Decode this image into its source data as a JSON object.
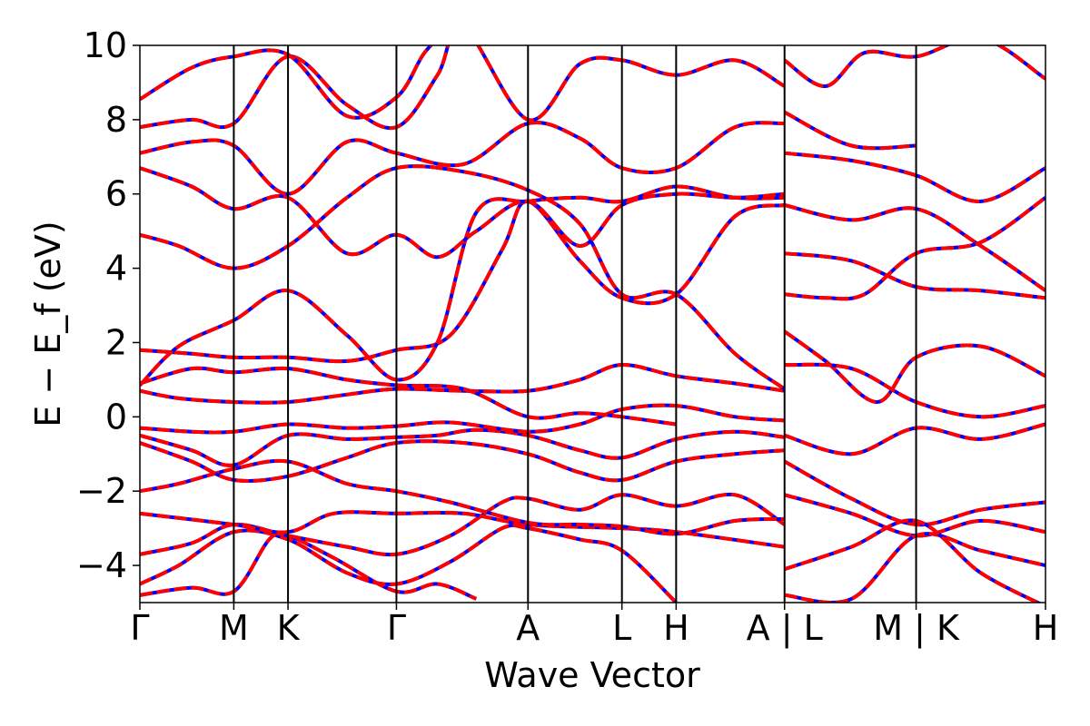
{
  "chart_data": {
    "type": "line",
    "title": "",
    "xlabel": "Wave Vector",
    "ylabel": "E − E_f (eV)",
    "ylim": [
      -5,
      10
    ],
    "yticks": [
      -4,
      -2,
      0,
      2,
      4,
      6,
      8,
      10
    ],
    "ytick_labels": [
      "−4",
      "−2",
      "0",
      "2",
      "4",
      "6",
      "8",
      "10"
    ],
    "kpoints": [
      {
        "label": "Γ",
        "x": 0.0
      },
      {
        "label": "M",
        "x": 0.726
      },
      {
        "label": "K",
        "x": 1.145
      },
      {
        "label": "Γ",
        "x": 1.983
      },
      {
        "label": "A",
        "x": 3.0
      },
      {
        "label": "L",
        "x": 3.726
      },
      {
        "label": "H",
        "x": 4.145
      },
      {
        "label": "A | L",
        "x": 4.983
      },
      {
        "label": "M | K",
        "x": 6.0
      },
      {
        "label": "H",
        "x": 7.0
      }
    ],
    "grid": false,
    "legend": "none",
    "series": [
      {
        "color": "#0000ff",
        "style": "solid"
      },
      {
        "color": "#ff0000",
        "style": "dashed"
      }
    ],
    "bands": [
      {
        "segments": [
          [
            0.0,
            -4.8
          ],
          [
            0.4,
            -4.6
          ],
          [
            0.726,
            -4.7
          ],
          [
            1.0,
            -3.3
          ],
          [
            1.145,
            -3.2
          ],
          [
            1.5,
            -3.8
          ],
          [
            1.983,
            -4.7
          ],
          [
            2.3,
            -4.5
          ],
          [
            2.6,
            -4.9
          ]
        ]
      },
      {
        "segments": [
          [
            0.0,
            -4.5
          ],
          [
            0.3,
            -4.0
          ],
          [
            0.726,
            -3.1
          ],
          [
            1.145,
            -3.3
          ],
          [
            1.6,
            -4.2
          ],
          [
            1.983,
            -4.5
          ],
          [
            2.4,
            -3.9
          ],
          [
            2.8,
            -3.0
          ],
          [
            3.0,
            -3.0
          ],
          [
            3.4,
            -3.3
          ],
          [
            3.726,
            -3.6
          ],
          [
            4.145,
            -5.0
          ]
        ]
      },
      {
        "segments": [
          [
            0.0,
            -3.7
          ],
          [
            0.4,
            -3.4
          ],
          [
            0.726,
            -2.9
          ],
          [
            1.145,
            -3.2
          ],
          [
            1.6,
            -3.5
          ],
          [
            1.983,
            -3.7
          ],
          [
            2.4,
            -3.2
          ],
          [
            2.8,
            -2.3
          ],
          [
            3.0,
            -2.2
          ],
          [
            3.4,
            -2.5
          ],
          [
            3.726,
            -2.1
          ],
          [
            4.145,
            -2.4
          ],
          [
            4.6,
            -2.1
          ],
          [
            4.983,
            -2.9
          ]
        ]
      },
      {
        "segments": [
          [
            0.0,
            -2.6
          ],
          [
            0.726,
            -2.9
          ],
          [
            1.145,
            -3.1
          ],
          [
            1.5,
            -2.6
          ],
          [
            1.983,
            -2.6
          ],
          [
            2.5,
            -2.6
          ],
          [
            3.0,
            -2.9
          ],
          [
            3.726,
            -3.0
          ],
          [
            4.145,
            -3.1
          ],
          [
            4.983,
            -3.5
          ]
        ]
      },
      {
        "segments": [
          [
            0.0,
            -2.0
          ],
          [
            0.3,
            -1.8
          ],
          [
            0.726,
            -1.4
          ],
          [
            1.145,
            -1.2
          ],
          [
            1.6,
            -1.8
          ],
          [
            1.983,
            -2.0
          ],
          [
            2.4,
            -2.3
          ],
          [
            3.0,
            -2.85
          ],
          [
            3.4,
            -2.9
          ],
          [
            3.726,
            -2.95
          ],
          [
            4.145,
            -3.15
          ],
          [
            4.6,
            -2.8
          ],
          [
            4.983,
            -2.75
          ]
        ]
      },
      {
        "segments": [
          [
            0.0,
            -0.7
          ],
          [
            0.4,
            -1.2
          ],
          [
            0.726,
            -1.7
          ],
          [
            1.145,
            -1.6
          ],
          [
            1.6,
            -1.1
          ],
          [
            1.983,
            -0.7
          ],
          [
            2.5,
            -0.7
          ],
          [
            3.0,
            -1.0
          ],
          [
            3.4,
            -1.5
          ],
          [
            3.726,
            -1.7
          ],
          [
            4.145,
            -1.2
          ],
          [
            4.6,
            -1.0
          ],
          [
            4.983,
            -0.9
          ]
        ]
      },
      {
        "segments": [
          [
            0.0,
            -0.5
          ],
          [
            0.4,
            -0.9
          ],
          [
            0.726,
            -1.3
          ],
          [
            1.145,
            -0.5
          ],
          [
            1.6,
            -0.6
          ],
          [
            1.983,
            -0.55
          ],
          [
            2.3,
            -0.5
          ],
          [
            2.6,
            -0.35
          ],
          [
            3.0,
            -0.5
          ],
          [
            3.4,
            -0.9
          ],
          [
            3.726,
            -1.1
          ],
          [
            4.145,
            -0.6
          ],
          [
            4.6,
            -0.4
          ],
          [
            4.983,
            -0.55
          ]
        ]
      },
      {
        "segments": [
          [
            0.0,
            -0.3
          ],
          [
            0.4,
            -0.4
          ],
          [
            0.726,
            -0.4
          ],
          [
            1.145,
            -0.2
          ],
          [
            1.6,
            -0.3
          ],
          [
            1.983,
            -0.25
          ],
          [
            2.4,
            -0.15
          ],
          [
            3.0,
            -0.4
          ],
          [
            3.4,
            -0.2
          ],
          [
            3.726,
            0.2
          ],
          [
            4.145,
            0.3
          ],
          [
            4.6,
            0.0
          ],
          [
            4.983,
            -0.1
          ]
        ]
      },
      {
        "segments": [
          [
            0.0,
            0.7
          ],
          [
            0.3,
            0.5
          ],
          [
            0.726,
            0.4
          ],
          [
            1.145,
            0.4
          ],
          [
            1.6,
            0.6
          ],
          [
            1.983,
            0.75
          ],
          [
            2.5,
            0.7
          ],
          [
            3.0,
            0.7
          ],
          [
            3.4,
            1.0
          ],
          [
            3.726,
            1.4
          ],
          [
            4.145,
            1.1
          ],
          [
            4.6,
            0.9
          ],
          [
            4.983,
            0.7
          ]
        ]
      },
      {
        "segments": [
          [
            0.0,
            0.9
          ],
          [
            0.4,
            1.3
          ],
          [
            0.726,
            1.2
          ],
          [
            1.145,
            1.3
          ],
          [
            1.6,
            1.0
          ],
          [
            1.983,
            0.85
          ],
          [
            2.5,
            0.75
          ],
          [
            3.0,
            0.0
          ],
          [
            3.4,
            0.1
          ],
          [
            3.726,
            0.0
          ],
          [
            4.145,
            -0.2
          ]
        ]
      },
      {
        "segments": [
          [
            0.0,
            1.8
          ],
          [
            0.4,
            1.7
          ],
          [
            0.726,
            1.6
          ],
          [
            1.145,
            1.6
          ],
          [
            1.6,
            1.5
          ],
          [
            1.983,
            1.8
          ],
          [
            2.4,
            2.2
          ],
          [
            2.8,
            4.5
          ],
          [
            3.0,
            5.8
          ],
          [
            3.4,
            4.2
          ],
          [
            3.726,
            3.2
          ],
          [
            4.145,
            3.3
          ],
          [
            4.6,
            5.4
          ],
          [
            4.983,
            5.7
          ]
        ]
      },
      {
        "segments": [
          [
            0.0,
            0.85
          ],
          [
            0.3,
            1.9
          ],
          [
            0.726,
            2.6
          ],
          [
            1.145,
            3.4
          ],
          [
            1.6,
            2.2
          ],
          [
            1.983,
            1.0
          ],
          [
            2.3,
            2.0
          ],
          [
            2.6,
            5.5
          ],
          [
            3.0,
            5.8
          ],
          [
            3.4,
            5.9
          ],
          [
            3.726,
            5.8
          ],
          [
            4.145,
            6.2
          ],
          [
            4.6,
            5.9
          ],
          [
            4.983,
            5.9
          ]
        ]
      },
      {
        "segments": [
          [
            0.0,
            4.9
          ],
          [
            0.3,
            4.6
          ],
          [
            0.726,
            4.0
          ],
          [
            1.145,
            4.6
          ],
          [
            1.6,
            5.9
          ],
          [
            1.983,
            6.7
          ],
          [
            2.5,
            6.6
          ],
          [
            3.0,
            6.1
          ],
          [
            3.4,
            5.2
          ],
          [
            3.726,
            3.3
          ],
          [
            4.145,
            3.3
          ],
          [
            4.6,
            1.7
          ],
          [
            4.983,
            0.75
          ]
        ]
      },
      {
        "segments": [
          [
            0.0,
            6.7
          ],
          [
            0.4,
            6.2
          ],
          [
            0.726,
            5.6
          ],
          [
            1.145,
            5.9
          ],
          [
            1.6,
            4.4
          ],
          [
            1.983,
            4.9
          ],
          [
            2.3,
            4.3
          ],
          [
            2.6,
            5.0
          ],
          [
            3.0,
            5.8
          ],
          [
            3.4,
            4.6
          ],
          [
            3.726,
            5.7
          ],
          [
            4.145,
            6.0
          ],
          [
            4.6,
            5.9
          ],
          [
            4.983,
            6.0
          ]
        ]
      },
      {
        "segments": [
          [
            0.0,
            7.1
          ],
          [
            0.4,
            7.4
          ],
          [
            0.726,
            7.3
          ],
          [
            1.145,
            6.0
          ],
          [
            1.6,
            7.4
          ],
          [
            1.983,
            7.1
          ],
          [
            2.5,
            6.8
          ],
          [
            3.0,
            7.9
          ],
          [
            3.4,
            7.5
          ],
          [
            3.726,
            6.7
          ],
          [
            4.145,
            6.7
          ],
          [
            4.6,
            7.8
          ],
          [
            4.983,
            7.9
          ]
        ]
      },
      {
        "segments": [
          [
            0.0,
            7.8
          ],
          [
            0.4,
            8.0
          ],
          [
            0.726,
            7.9
          ],
          [
            1.145,
            9.7
          ],
          [
            1.6,
            8.4
          ],
          [
            1.983,
            7.8
          ],
          [
            2.3,
            9.2
          ],
          [
            2.5,
            10.5
          ],
          [
            3.0,
            8.0
          ],
          [
            3.4,
            9.5
          ],
          [
            3.726,
            9.6
          ],
          [
            4.145,
            9.2
          ],
          [
            4.6,
            9.6
          ],
          [
            4.983,
            8.9
          ]
        ]
      },
      {
        "segments": [
          [
            0.0,
            8.55
          ],
          [
            0.4,
            9.4
          ],
          [
            0.726,
            9.7
          ],
          [
            1.145,
            9.75
          ],
          [
            1.6,
            8.1
          ],
          [
            1.983,
            8.6
          ],
          [
            2.2,
            9.8
          ],
          [
            2.4,
            10.5
          ]
        ]
      },
      {
        "segments": [
          [
            4.983,
            9.6
          ],
          [
            5.3,
            8.9
          ],
          [
            5.6,
            9.8
          ],
          [
            6.0,
            9.7
          ],
          [
            6.5,
            10.2
          ],
          [
            7.0,
            9.1
          ]
        ]
      },
      {
        "segments": [
          [
            4.983,
            8.2
          ],
          [
            5.5,
            7.3
          ],
          [
            6.0,
            7.3
          ]
        ]
      },
      {
        "segments": [
          [
            4.983,
            7.1
          ],
          [
            5.5,
            6.9
          ],
          [
            6.0,
            6.5
          ],
          [
            6.5,
            5.8
          ],
          [
            7.0,
            6.7
          ]
        ]
      },
      {
        "segments": [
          [
            4.983,
            5.7
          ],
          [
            5.5,
            5.3
          ],
          [
            6.0,
            5.6
          ],
          [
            6.5,
            4.6
          ],
          [
            7.0,
            3.4
          ]
        ]
      },
      {
        "segments": [
          [
            4.983,
            4.4
          ],
          [
            5.5,
            4.2
          ],
          [
            6.0,
            3.5
          ],
          [
            6.5,
            3.4
          ],
          [
            7.0,
            3.2
          ]
        ]
      },
      {
        "segments": [
          [
            4.983,
            3.3
          ],
          [
            5.3,
            3.2
          ],
          [
            5.6,
            3.3
          ],
          [
            6.0,
            4.4
          ],
          [
            6.5,
            4.7
          ],
          [
            7.0,
            5.9
          ]
        ]
      },
      {
        "segments": [
          [
            4.983,
            2.3
          ],
          [
            5.3,
            1.5
          ],
          [
            5.7,
            0.4
          ],
          [
            6.0,
            1.6
          ],
          [
            6.5,
            1.9
          ],
          [
            7.0,
            1.1
          ]
        ]
      },
      {
        "segments": [
          [
            4.983,
            1.4
          ],
          [
            5.5,
            1.3
          ],
          [
            6.0,
            0.4
          ],
          [
            6.5,
            0.0
          ],
          [
            7.0,
            0.3
          ]
        ]
      },
      {
        "segments": [
          [
            4.983,
            -0.5
          ],
          [
            5.5,
            -1.0
          ],
          [
            6.0,
            -0.3
          ],
          [
            6.5,
            -0.6
          ],
          [
            7.0,
            -0.2
          ]
        ]
      },
      {
        "segments": [
          [
            4.983,
            -1.2
          ],
          [
            5.5,
            -2.2
          ],
          [
            6.0,
            -2.9
          ],
          [
            6.5,
            -2.5
          ],
          [
            7.0,
            -2.3
          ]
        ]
      },
      {
        "segments": [
          [
            4.983,
            -2.1
          ],
          [
            5.5,
            -2.6
          ],
          [
            6.0,
            -3.2
          ],
          [
            6.5,
            -2.8
          ],
          [
            7.0,
            -3.1
          ]
        ]
      },
      {
        "segments": [
          [
            4.983,
            -4.8
          ],
          [
            5.5,
            -4.9
          ],
          [
            6.0,
            -3.2
          ],
          [
            6.5,
            -3.6
          ],
          [
            7.0,
            -4.0
          ]
        ]
      },
      {
        "segments": [
          [
            4.983,
            -4.1
          ],
          [
            5.5,
            -3.5
          ],
          [
            6.0,
            -2.8
          ],
          [
            6.5,
            -4.2
          ],
          [
            7.0,
            -5.1
          ]
        ]
      }
    ]
  }
}
